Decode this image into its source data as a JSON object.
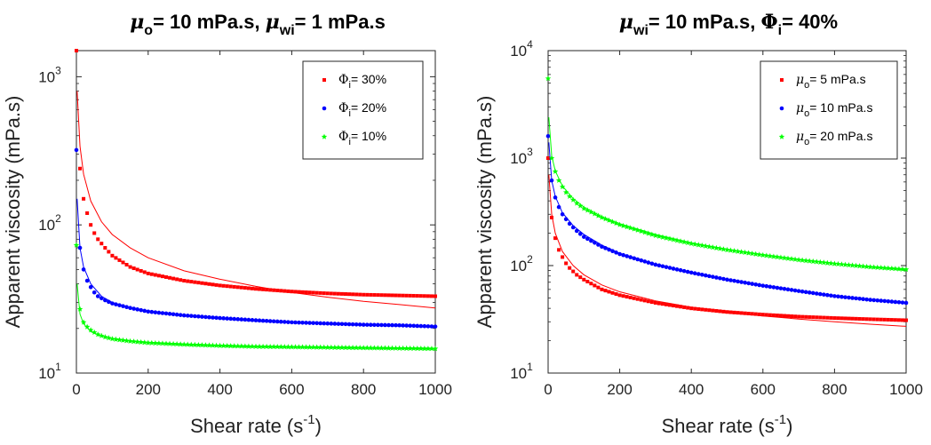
{
  "chart_data": [
    {
      "type": "scatter",
      "title": {
        "mu_sym": "μ",
        "mu_sub": "o",
        "text1": "= 10 mPa.s, ",
        "mu2_sym": "μ",
        "mu2_sub": "wi",
        "text2": "= 1 mPa.s"
      },
      "xlabel": {
        "text": "Shear rate (s",
        "sup": "-1",
        "tail": ")"
      },
      "ylabel": "Apparent viscosity (mPa.s)",
      "xlim": [
        0,
        1000
      ],
      "ylim": [
        10,
        1500
      ],
      "yscale": "log",
      "xticks": [
        "0",
        "200",
        "400",
        "600",
        "800",
        "1000"
      ],
      "yticks": [
        {
          "base": "10",
          "exp": "1"
        },
        {
          "base": "10",
          "exp": "2"
        },
        {
          "base": "10",
          "exp": "3"
        }
      ],
      "legend_position": "top-right",
      "series": [
        {
          "name": {
            "sym": "Φ",
            "sub": "i",
            "text": "= 30%"
          },
          "color": "#ff0000",
          "marker": "square",
          "points": [
            [
              0,
              1500
            ],
            [
              10,
              240
            ],
            [
              20,
              150
            ],
            [
              30,
              120
            ],
            [
              40,
              100
            ],
            [
              50,
              88
            ],
            [
              60,
              80
            ],
            [
              80,
              70
            ],
            [
              100,
              62
            ],
            [
              150,
              52
            ],
            [
              200,
              47
            ],
            [
              300,
              42
            ],
            [
              400,
              39
            ],
            [
              500,
              37
            ],
            [
              600,
              35.5
            ],
            [
              700,
              34.5
            ],
            [
              800,
              33.8
            ],
            [
              900,
              33.4
            ],
            [
              1000,
              33
            ]
          ],
          "fit": [
            [
              2,
              800
            ],
            [
              10,
              340
            ],
            [
              20,
              220
            ],
            [
              40,
              145
            ],
            [
              70,
              105
            ],
            [
              100,
              86
            ],
            [
              150,
              70
            ],
            [
              200,
              60
            ],
            [
              300,
              49
            ],
            [
              400,
              43
            ],
            [
              500,
              38.5
            ],
            [
              600,
              35
            ],
            [
              700,
              32.5
            ],
            [
              800,
              30.5
            ],
            [
              900,
              29
            ],
            [
              1000,
              27.5
            ]
          ]
        },
        {
          "name": {
            "sym": "Φ",
            "sub": "i",
            "text": "= 20%"
          },
          "color": "#0000ff",
          "marker": "circle",
          "points": [
            [
              0,
              320
            ],
            [
              10,
              70
            ],
            [
              20,
              50
            ],
            [
              30,
              42
            ],
            [
              40,
              38
            ],
            [
              50,
              35
            ],
            [
              60,
              33
            ],
            [
              80,
              31
            ],
            [
              100,
              29.5
            ],
            [
              150,
              27.5
            ],
            [
              200,
              26
            ],
            [
              300,
              24.5
            ],
            [
              400,
              23.5
            ],
            [
              500,
              22.7
            ],
            [
              600,
              22
            ],
            [
              700,
              21.6
            ],
            [
              800,
              21.2
            ],
            [
              900,
              21
            ],
            [
              1000,
              20.6
            ]
          ],
          "fit": [
            [
              2,
              150
            ],
            [
              10,
              70
            ],
            [
              20,
              52
            ],
            [
              40,
              40
            ],
            [
              70,
              33
            ],
            [
              100,
              30
            ],
            [
              150,
              27.5
            ],
            [
              200,
              26
            ],
            [
              300,
              24.3
            ],
            [
              400,
              23.2
            ],
            [
              500,
              22.4
            ],
            [
              600,
              21.8
            ],
            [
              700,
              21.4
            ],
            [
              800,
              21
            ],
            [
              900,
              20.7
            ],
            [
              1000,
              20.4
            ]
          ]
        },
        {
          "name": {
            "sym": "Φ",
            "sub": "i",
            "text": "= 10%"
          },
          "color": "#00ff00",
          "marker": "star",
          "points": [
            [
              0,
              73
            ],
            [
              10,
              27
            ],
            [
              20,
              22
            ],
            [
              30,
              20.5
            ],
            [
              40,
              19.5
            ],
            [
              50,
              18.8
            ],
            [
              60,
              18.2
            ],
            [
              80,
              17.5
            ],
            [
              100,
              17
            ],
            [
              150,
              16.4
            ],
            [
              200,
              16
            ],
            [
              300,
              15.6
            ],
            [
              400,
              15.3
            ],
            [
              500,
              15.1
            ],
            [
              600,
              15
            ],
            [
              700,
              14.9
            ],
            [
              800,
              14.8
            ],
            [
              900,
              14.7
            ],
            [
              1000,
              14.6
            ]
          ],
          "fit": [
            [
              2,
              40
            ],
            [
              10,
              25
            ],
            [
              20,
              21.5
            ],
            [
              40,
              19
            ],
            [
              70,
              17.8
            ],
            [
              100,
              17
            ],
            [
              150,
              16.4
            ],
            [
              200,
              16
            ],
            [
              300,
              15.5
            ],
            [
              400,
              15.2
            ],
            [
              500,
              15
            ],
            [
              600,
              14.9
            ],
            [
              700,
              14.8
            ],
            [
              800,
              14.7
            ],
            [
              900,
              14.6
            ],
            [
              1000,
              14.5
            ]
          ]
        }
      ]
    },
    {
      "type": "scatter",
      "title": {
        "mu_sym": "μ",
        "mu_sub": "wi",
        "text1": "= 10 mPa.s, ",
        "mu2_sym": "Φ",
        "mu2_sub": "i",
        "text2": "= 40%"
      },
      "xlabel": {
        "text": "Shear rate (s",
        "sup": "-1",
        "tail": ")"
      },
      "ylabel": "Apparent viscosity (mPa.s)",
      "xlim": [
        0,
        1000
      ],
      "ylim": [
        10,
        10000
      ],
      "yscale": "log",
      "xticks": [
        "0",
        "200",
        "400",
        "600",
        "800",
        "1000"
      ],
      "yticks": [
        {
          "base": "10",
          "exp": "1"
        },
        {
          "base": "10",
          "exp": "2"
        },
        {
          "base": "10",
          "exp": "3"
        },
        {
          "base": "10",
          "exp": "4"
        }
      ],
      "legend_position": "top-right",
      "series": [
        {
          "name": {
            "sym": "μ",
            "sub": "o",
            "text": "= 5 mPa.s"
          },
          "color": "#ff0000",
          "marker": "square",
          "points": [
            [
              0,
              1000
            ],
            [
              10,
              280
            ],
            [
              20,
              180
            ],
            [
              30,
              140
            ],
            [
              40,
              120
            ],
            [
              50,
              105
            ],
            [
              60,
              95
            ],
            [
              80,
              82
            ],
            [
              100,
              74
            ],
            [
              150,
              60
            ],
            [
              200,
              53
            ],
            [
              300,
              45
            ],
            [
              400,
              40
            ],
            [
              500,
              37
            ],
            [
              600,
              35
            ],
            [
              700,
              33.5
            ],
            [
              800,
              32.5
            ],
            [
              900,
              31.7
            ],
            [
              1000,
              31
            ]
          ],
          "fit": [
            [
              2,
              700
            ],
            [
              10,
              300
            ],
            [
              20,
              200
            ],
            [
              40,
              135
            ],
            [
              70,
              100
            ],
            [
              100,
              82
            ],
            [
              150,
              66
            ],
            [
              200,
              57
            ],
            [
              300,
              47
            ],
            [
              400,
              41
            ],
            [
              500,
              37
            ],
            [
              600,
              34
            ],
            [
              700,
              31.8
            ],
            [
              800,
              30
            ],
            [
              900,
              28.5
            ],
            [
              1000,
              27.2
            ]
          ]
        },
        {
          "name": {
            "sym": "μ",
            "sub": "o",
            "text": "= 10 mPa.s"
          },
          "color": "#0000ff",
          "marker": "circle",
          "points": [
            [
              0,
              1600
            ],
            [
              10,
              620
            ],
            [
              20,
              430
            ],
            [
              30,
              350
            ],
            [
              40,
              300
            ],
            [
              50,
              270
            ],
            [
              60,
              245
            ],
            [
              80,
              210
            ],
            [
              100,
              185
            ],
            [
              150,
              150
            ],
            [
              200,
              128
            ],
            [
              300,
              102
            ],
            [
              400,
              86
            ],
            [
              500,
              74
            ],
            [
              600,
              65
            ],
            [
              700,
              58
            ],
            [
              800,
              52
            ],
            [
              900,
              48
            ],
            [
              1000,
              45
            ]
          ],
          "fit": [
            [
              2,
              1400
            ],
            [
              10,
              620
            ],
            [
              20,
              440
            ],
            [
              40,
              310
            ],
            [
              70,
              235
            ],
            [
              100,
              195
            ],
            [
              150,
              155
            ],
            [
              200,
              130
            ],
            [
              300,
              103
            ],
            [
              400,
              86
            ],
            [
              500,
              74
            ],
            [
              600,
              65
            ],
            [
              700,
              58
            ],
            [
              800,
              52
            ],
            [
              900,
              48
            ],
            [
              1000,
              44.5
            ]
          ]
        },
        {
          "name": {
            "sym": "μ",
            "sub": "o",
            "text": "= 20 mPa.s"
          },
          "color": "#00ff00",
          "marker": "star",
          "points": [
            [
              0,
              5500
            ],
            [
              10,
              1000
            ],
            [
              20,
              750
            ],
            [
              30,
              620
            ],
            [
              40,
              540
            ],
            [
              50,
              480
            ],
            [
              60,
              440
            ],
            [
              80,
              380
            ],
            [
              100,
              340
            ],
            [
              150,
              280
            ],
            [
              200,
              240
            ],
            [
              300,
              190
            ],
            [
              400,
              160
            ],
            [
              500,
              140
            ],
            [
              600,
              125
            ],
            [
              700,
              113
            ],
            [
              800,
              104
            ],
            [
              900,
              97
            ],
            [
              1000,
              92
            ]
          ],
          "fit": [
            [
              2,
              2400
            ],
            [
              10,
              1050
            ],
            [
              20,
              760
            ],
            [
              40,
              550
            ],
            [
              70,
              420
            ],
            [
              100,
              350
            ],
            [
              150,
              285
            ],
            [
              200,
              245
            ],
            [
              300,
              195
            ],
            [
              400,
              163
            ],
            [
              500,
              142
            ],
            [
              600,
              126
            ],
            [
              700,
              114
            ],
            [
              800,
              105
            ],
            [
              900,
              97
            ],
            [
              1000,
              91
            ]
          ]
        }
      ]
    }
  ]
}
